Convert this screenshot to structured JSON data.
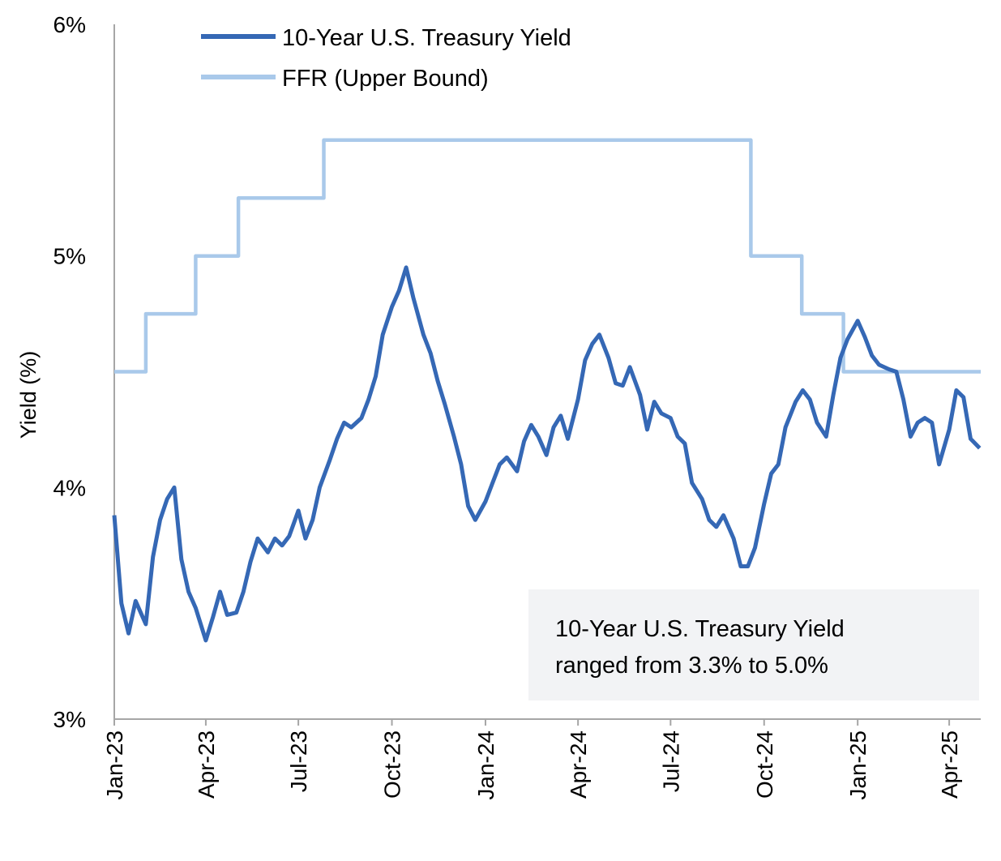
{
  "chart_data": {
    "type": "line",
    "title": "",
    "ylabel": "Yield (%)",
    "xlabel": "",
    "ylim": [
      3,
      6
    ],
    "yticks": [
      "3%",
      "4%",
      "5%",
      "6%"
    ],
    "ytick_values": [
      3,
      4,
      5,
      6
    ],
    "xlim": [
      "2023-01-01",
      "2025-05-02"
    ],
    "xticks": [
      "Jan-23",
      "Apr-23",
      "Jul-23",
      "Oct-23",
      "Jan-24",
      "Apr-24",
      "Jul-24",
      "Oct-24",
      "Jan-25",
      "Apr-25"
    ],
    "xtick_dates": [
      "2023-01-01",
      "2023-04-01",
      "2023-07-01",
      "2023-10-01",
      "2024-01-01",
      "2024-04-01",
      "2024-07-01",
      "2024-10-01",
      "2025-01-01",
      "2025-04-01"
    ],
    "grid": false,
    "legend_position": "top-left",
    "annotation": [
      "10-Year U.S. Treasury Yield",
      "ranged from 3.3% to 5.0%"
    ],
    "series": [
      {
        "name": "10-Year U.S. Treasury Yield",
        "color": "#3568b5",
        "step": false,
        "dates": [
          "2023-01-01",
          "2023-01-08",
          "2023-01-15",
          "2023-01-22",
          "2023-02-01",
          "2023-02-08",
          "2023-02-15",
          "2023-02-22",
          "2023-03-01",
          "2023-03-08",
          "2023-03-15",
          "2023-03-22",
          "2023-04-01",
          "2023-04-08",
          "2023-04-15",
          "2023-04-22",
          "2023-05-01",
          "2023-05-08",
          "2023-05-15",
          "2023-05-22",
          "2023-06-01",
          "2023-06-08",
          "2023-06-15",
          "2023-06-22",
          "2023-07-01",
          "2023-07-08",
          "2023-07-15",
          "2023-07-22",
          "2023-08-01",
          "2023-08-08",
          "2023-08-15",
          "2023-08-22",
          "2023-09-01",
          "2023-09-08",
          "2023-09-15",
          "2023-09-22",
          "2023-10-01",
          "2023-10-08",
          "2023-10-15",
          "2023-10-22",
          "2023-11-01",
          "2023-11-08",
          "2023-11-15",
          "2023-11-22",
          "2023-12-01",
          "2023-12-08",
          "2023-12-15",
          "2023-12-22",
          "2024-01-01",
          "2024-01-08",
          "2024-01-15",
          "2024-01-22",
          "2024-02-01",
          "2024-02-08",
          "2024-02-15",
          "2024-02-22",
          "2024-03-01",
          "2024-03-08",
          "2024-03-15",
          "2024-03-22",
          "2024-04-01",
          "2024-04-08",
          "2024-04-15",
          "2024-04-22",
          "2024-05-01",
          "2024-05-08",
          "2024-05-15",
          "2024-05-22",
          "2024-06-01",
          "2024-06-08",
          "2024-06-15",
          "2024-06-22",
          "2024-07-01",
          "2024-07-08",
          "2024-07-15",
          "2024-07-22",
          "2024-08-01",
          "2024-08-08",
          "2024-08-15",
          "2024-08-22",
          "2024-09-01",
          "2024-09-08",
          "2024-09-15",
          "2024-09-22",
          "2024-10-01",
          "2024-10-08",
          "2024-10-15",
          "2024-10-22",
          "2024-11-01",
          "2024-11-08",
          "2024-11-15",
          "2024-11-22",
          "2024-12-01",
          "2024-12-08",
          "2024-12-15",
          "2024-12-22",
          "2025-01-01",
          "2025-01-08",
          "2025-01-15",
          "2025-01-22",
          "2025-02-01",
          "2025-02-08",
          "2025-02-15",
          "2025-02-22",
          "2025-03-01",
          "2025-03-08",
          "2025-03-15",
          "2025-03-22",
          "2025-04-01",
          "2025-04-08",
          "2025-04-15",
          "2025-04-22",
          "2025-05-01"
        ],
        "values": [
          3.88,
          3.5,
          3.37,
          3.51,
          3.41,
          3.7,
          3.86,
          3.95,
          4.0,
          3.69,
          3.55,
          3.48,
          3.34,
          3.44,
          3.55,
          3.45,
          3.46,
          3.55,
          3.68,
          3.78,
          3.72,
          3.78,
          3.75,
          3.79,
          3.9,
          3.78,
          3.86,
          4.0,
          4.12,
          4.21,
          4.28,
          4.26,
          4.3,
          4.38,
          4.48,
          4.66,
          4.78,
          4.85,
          4.95,
          4.82,
          4.66,
          4.58,
          4.46,
          4.36,
          4.22,
          4.1,
          3.92,
          3.86,
          3.94,
          4.02,
          4.1,
          4.13,
          4.07,
          4.2,
          4.27,
          4.22,
          4.14,
          4.26,
          4.31,
          4.21,
          4.38,
          4.55,
          4.62,
          4.66,
          4.56,
          4.45,
          4.44,
          4.52,
          4.4,
          4.25,
          4.37,
          4.32,
          4.3,
          4.22,
          4.19,
          4.02,
          3.95,
          3.86,
          3.83,
          3.88,
          3.78,
          3.66,
          3.66,
          3.74,
          3.93,
          4.06,
          4.1,
          4.26,
          4.37,
          4.42,
          4.38,
          4.28,
          4.22,
          4.4,
          4.56,
          4.64,
          4.72,
          4.65,
          4.57,
          4.53,
          4.51,
          4.5,
          4.38,
          4.22,
          4.28,
          4.3,
          4.28,
          4.1,
          4.25,
          4.42,
          4.39,
          4.21,
          4.17
        ]
      },
      {
        "name": "FFR (Upper Bound)",
        "color": "#a9c9ea",
        "step": true,
        "dates": [
          "2023-01-01",
          "2023-02-01",
          "2023-03-22",
          "2023-05-03",
          "2023-07-26",
          "2024-09-18",
          "2024-11-07",
          "2024-12-18",
          "2025-05-02"
        ],
        "values": [
          4.5,
          4.75,
          5.0,
          5.25,
          5.5,
          5.0,
          4.75,
          4.5,
          4.5
        ]
      }
    ]
  }
}
